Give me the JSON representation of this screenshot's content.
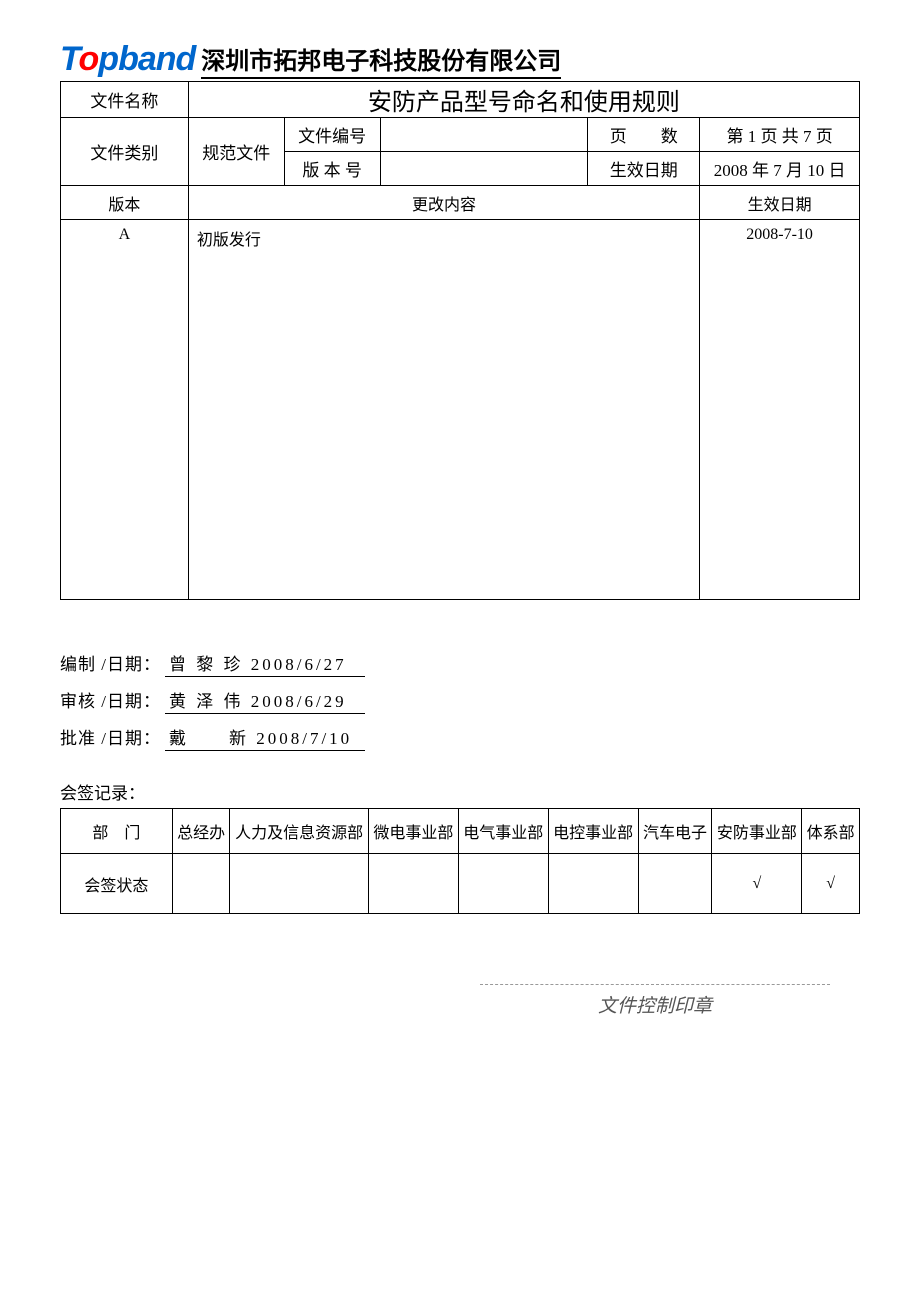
{
  "header": {
    "logo_text_pre": "T",
    "logo_dot": "o",
    "logo_text_post": "pband",
    "company_name": "深圳市拓邦电子科技股份有限公司"
  },
  "info": {
    "file_name_label": "文件名称",
    "file_name_value": "安防产品型号命名和使用规则",
    "file_type_label": "文件类别",
    "file_type_value": "规范文件",
    "doc_no_label": "文件编号",
    "doc_no_value": "",
    "page_label": "页　　数",
    "page_value": "第 1 页 共 7 页",
    "ver_label": "版 本 号",
    "ver_value": "",
    "eff_date_label": "生效日期",
    "eff_date_value": "2008 年 7 月 10 日"
  },
  "rev": {
    "col_version": "版本",
    "col_change": "更改内容",
    "col_date": "生效日期",
    "rows": [
      {
        "version": "A",
        "change": "初版发行",
        "date": "2008-7-10"
      }
    ]
  },
  "sign": {
    "prepared_label": "编制 /日期：",
    "prepared_value": "曾 黎 珍 2008/6/27",
    "reviewed_label": "审核 /日期：",
    "reviewed_value": "黄 泽 伟 2008/6/29",
    "approved_label": "批准 /日期：",
    "approved_value": "戴　　新 2008/7/10"
  },
  "cosign": {
    "label": "会签记录：",
    "row1_label": "部　门",
    "row2_label": "会签状态",
    "departments": [
      "总经办",
      "人力及信息资源部",
      "微电事业部",
      "电气事业部",
      "电控事业部",
      "汽车电子",
      "安防事业部",
      "体系部"
    ],
    "status": [
      "",
      "",
      "",
      "",
      "",
      "",
      "√",
      "√"
    ]
  },
  "stamp": "文件控制印章",
  "layout": {
    "info_col_widths": [
      "16%",
      "12%",
      "12%",
      "26%",
      "14%",
      "20%"
    ],
    "rev_col_widths": [
      "16%",
      "64%",
      "20%"
    ],
    "cosign_label_col_width": "14%"
  }
}
